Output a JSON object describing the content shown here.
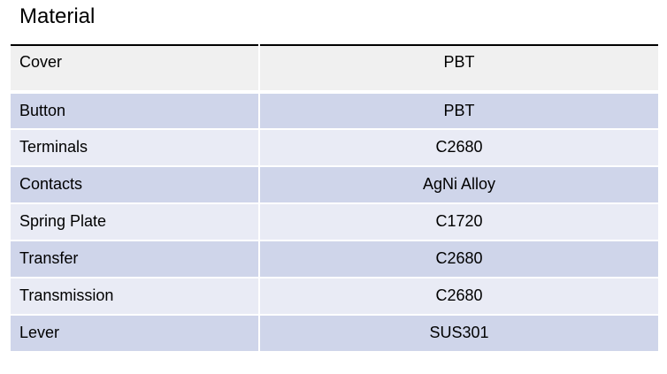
{
  "title": "Material",
  "rows": [
    {
      "part": "Cover",
      "material": "PBT"
    },
    {
      "part": "Button",
      "material": "PBT"
    },
    {
      "part": "Terminals",
      "material": "C2680"
    },
    {
      "part": "Contacts",
      "material": "AgNi Alloy"
    },
    {
      "part": "Spring Plate",
      "material": "C1720"
    },
    {
      "part": "Transfer",
      "material": "C2680"
    },
    {
      "part": "Transmission",
      "material": "C2680"
    },
    {
      "part": "Lever",
      "material": "SUS301"
    }
  ],
  "colors": {
    "header_row": "#f0f0f0",
    "band_dark": "#cfd5ea",
    "band_light": "#e9ebf5"
  }
}
